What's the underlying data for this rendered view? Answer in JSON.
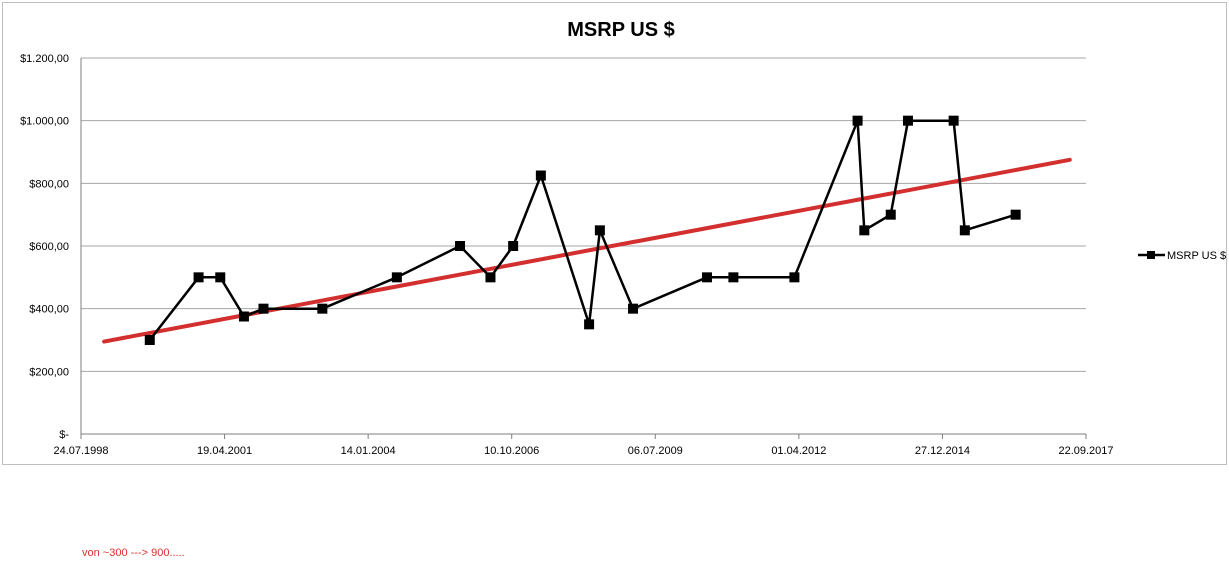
{
  "chart_data": {
    "type": "line",
    "title": "MSRP US $",
    "xlabel": "",
    "ylabel": "",
    "x_tick_labels": [
      "24.07.1998",
      "19.04.2001",
      "14.01.2004",
      "10.10.2006",
      "06.07.2009",
      "01.04.2012",
      "27.12.2014",
      "22.09.2017"
    ],
    "y_tick_labels": [
      "$-",
      "$200,00",
      "$400,00",
      "$600,00",
      "$800,00",
      "$1.000,00",
      "$1.200,00"
    ],
    "xlim": [
      "1998-07-24",
      "2017-09-22"
    ],
    "ylim": [
      0,
      1200
    ],
    "grid": true,
    "legend_position": "right",
    "series": [
      {
        "name": "MSRP US $",
        "color": "#000000",
        "marker": "square",
        "x": [
          "1999-11-15",
          "2000-10-20",
          "2001-03-20",
          "2001-09-01",
          "2002-01-15",
          "2003-03-01",
          "2004-08-01",
          "2005-10-15",
          "2006-05-15",
          "2006-10-20",
          "2007-05-01",
          "2008-04-01",
          "2008-06-15",
          "2009-02-01",
          "2010-07-01",
          "2011-01-01",
          "2012-03-01",
          "2013-05-15",
          "2013-07-01",
          "2014-01-01",
          "2014-05-01",
          "2015-03-15",
          "2015-06-01",
          "2016-05-20"
        ],
        "values": [
          300,
          500,
          500,
          375,
          400,
          400,
          500,
          600,
          500,
          600,
          825,
          350,
          650,
          400,
          500,
          500,
          500,
          1000,
          650,
          700,
          1000,
          1000,
          650,
          700
        ]
      },
      {
        "name": "",
        "color": "#d32f2f",
        "type": "trendline",
        "x": [
          "1999-01-01",
          "2017-06-01"
        ],
        "values": [
          295,
          875
        ]
      }
    ]
  },
  "note": "von ~300 ---> 900....."
}
